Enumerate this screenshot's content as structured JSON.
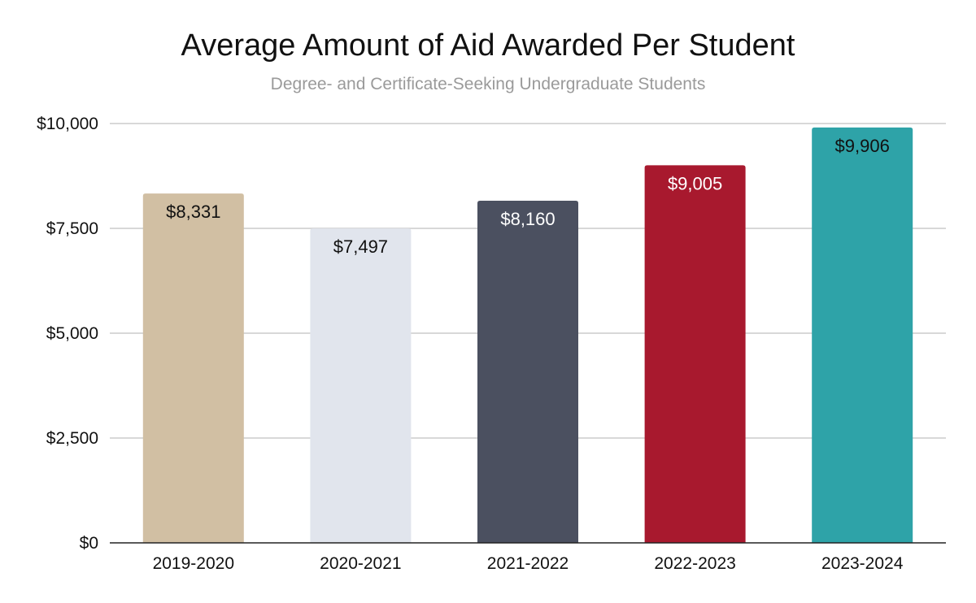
{
  "chart_data": {
    "type": "bar",
    "title": "Average Amount of Aid Awarded Per Student",
    "subtitle": "Degree- and Certificate-Seeking Undergraduate Students",
    "xlabel": "",
    "ylabel": "",
    "categories": [
      "2019-2020",
      "2020-2021",
      "2021-2022",
      "2022-2023",
      "2023-2024"
    ],
    "values": [
      8331,
      7497,
      8160,
      9005,
      9906
    ],
    "value_labels": [
      "$8,331",
      "$7,497",
      "$8,160",
      "$9,005",
      "$9,906"
    ],
    "bar_colors": [
      "#d1bfa3",
      "#e1e5ed",
      "#4b5060",
      "#a8192e",
      "#2ea3a8"
    ],
    "label_colors": [
      "#111111",
      "#111111",
      "#ffffff",
      "#ffffff",
      "#111111"
    ],
    "ylim": [
      0,
      10000
    ],
    "y_ticks": [
      0,
      2500,
      5000,
      7500,
      10000
    ],
    "y_tick_labels": [
      "$0",
      "$2,500",
      "$5,000",
      "$7,500",
      "$10,000"
    ],
    "grid": true,
    "legend": "none"
  }
}
